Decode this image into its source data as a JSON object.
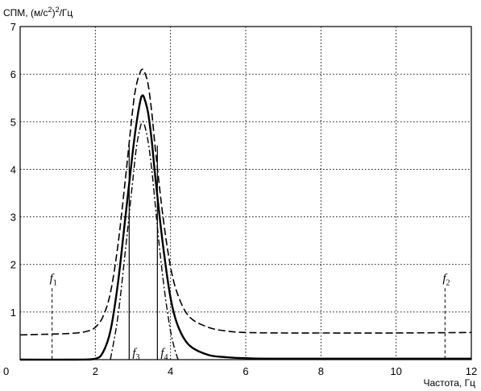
{
  "chart_data": {
    "type": "line",
    "ylabel": "СПМ, (м/с²)²/Гц",
    "ylabel_parts": {
      "main": "СПМ, (м/с",
      "sup1": "2",
      "mid": ")",
      "sup2": "2",
      "tail": "/Гц"
    },
    "xlabel": "Частота, Гц",
    "xlim": [
      0,
      12
    ],
    "ylim": [
      0,
      7
    ],
    "xticks": [
      0,
      2,
      4,
      6,
      8,
      10,
      12
    ],
    "yticks": [
      0,
      1,
      2,
      3,
      4,
      5,
      6,
      7
    ],
    "grid": true,
    "series": [
      {
        "style": "dashed",
        "x": [
          0,
          1,
          1.5,
          1.8,
          2.0,
          2.2,
          2.4,
          2.6,
          2.8,
          3.0,
          3.1,
          3.2,
          3.25,
          3.3,
          3.4,
          3.5,
          3.6,
          3.8,
          4.0,
          4.2,
          4.5,
          5,
          5.5,
          6,
          7,
          8,
          10,
          12
        ],
        "y": [
          0.52,
          0.54,
          0.56,
          0.6,
          0.68,
          0.9,
          1.4,
          2.4,
          3.8,
          5.3,
          5.8,
          6.05,
          6.1,
          6.06,
          5.8,
          5.2,
          4.4,
          3.0,
          1.95,
          1.35,
          0.9,
          0.68,
          0.6,
          0.57,
          0.56,
          0.56,
          0.56,
          0.57
        ]
      },
      {
        "style": "solid",
        "x": [
          0,
          1.5,
          2.0,
          2.2,
          2.4,
          2.6,
          2.8,
          3.0,
          3.1,
          3.2,
          3.25,
          3.3,
          3.4,
          3.5,
          3.6,
          3.8,
          4.0,
          4.2,
          4.5,
          5,
          5.5,
          6,
          7,
          12
        ],
        "y": [
          0,
          0,
          0.02,
          0.15,
          0.6,
          1.6,
          3.0,
          4.4,
          5.0,
          5.45,
          5.55,
          5.5,
          5.2,
          4.6,
          3.8,
          2.4,
          1.3,
          0.7,
          0.3,
          0.1,
          0.05,
          0.03,
          0.02,
          0.02
        ]
      },
      {
        "style": "dash-dot",
        "x": [
          2.4,
          2.6,
          2.8,
          3.0,
          3.1,
          3.2,
          3.25,
          3.3,
          3.4,
          3.5,
          3.6,
          3.7,
          3.8,
          3.9,
          4.0,
          4.1,
          4.2
        ],
        "y": [
          0.0,
          0.9,
          2.3,
          3.8,
          4.5,
          4.9,
          5.0,
          4.95,
          4.6,
          4.0,
          3.2,
          2.4,
          1.7,
          1.1,
          0.6,
          0.25,
          0.0
        ]
      }
    ],
    "markers": [
      {
        "name": "f",
        "sub": "1",
        "x": 0.85,
        "y_top": 1.5,
        "style": "dashed"
      },
      {
        "name": "f",
        "sub": "2",
        "x": 11.3,
        "y_top": 1.5,
        "style": "dashed"
      },
      {
        "name": "f",
        "sub": "3",
        "x": 2.9,
        "y_top": 4.5,
        "style": "solid"
      },
      {
        "name": "f",
        "sub": "4",
        "x": 3.65,
        "y_top": 4.5,
        "style": "solid"
      }
    ]
  }
}
